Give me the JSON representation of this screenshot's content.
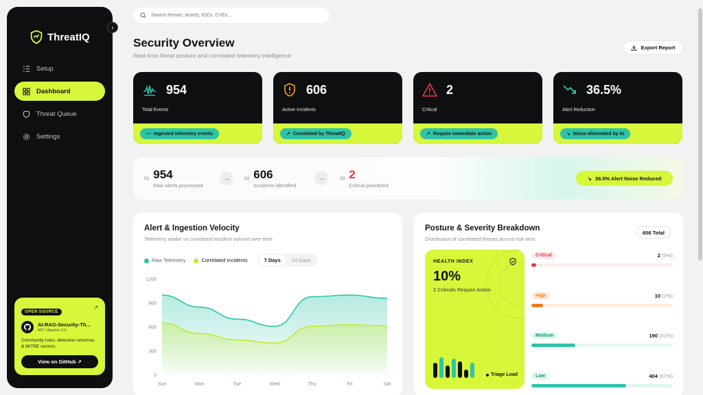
{
  "app": {
    "name": "ThreatIQ"
  },
  "search": {
    "placeholder": "Search threats, assets, IOCs, CVEs..."
  },
  "sidebar": {
    "items": [
      {
        "label": "Setup",
        "icon": "list-check-icon",
        "active": false
      },
      {
        "label": "Dashboard",
        "icon": "grid-icon",
        "active": true
      },
      {
        "label": "Threat Queue",
        "icon": "shield-icon",
        "active": false
      },
      {
        "label": "Settings",
        "icon": "gear-icon",
        "active": false
      }
    ],
    "open_source": {
      "badge": "OPEN SOURCE",
      "repo": "AI-RAG-Security-Th...",
      "license": "MIT / Apache 2.0",
      "description": "Community rules, detection schemas & MITRE vectors.",
      "button": "View on GitHub ↗"
    }
  },
  "header": {
    "title": "Security Overview",
    "subtitle": "Real-time threat posture and correlated telemetry intelligence",
    "export_label": "Export Report"
  },
  "stats": [
    {
      "value": "954",
      "label": "Total Events",
      "pill": "Ingested telemetry events",
      "icon": "pulse-bars-icon"
    },
    {
      "value": "606",
      "label": "Active Incidents",
      "pill": "Correlated by ThreatIQ",
      "icon": "shield-alert-icon"
    },
    {
      "value": "2",
      "label": "Critical",
      "pill": "Require immediate action",
      "icon": "warning-triangle-icon"
    },
    {
      "value": "36.5%",
      "label": "Alert Reduction",
      "pill": "Noise eliminated by AI",
      "icon": "trend-down-icon"
    }
  ],
  "pipeline": {
    "steps": [
      {
        "num": "01",
        "value": "954",
        "desc": "Raw alerts processed"
      },
      {
        "num": "02",
        "value": "606",
        "desc": "Incidents identified"
      },
      {
        "num": "03",
        "value": "2",
        "desc": "Critical prioritized"
      }
    ],
    "badge": "36.5% Alert Noise Reduced"
  },
  "velocity": {
    "title": "Alert & Ingestion Velocity",
    "subtitle": "Telemetry intake vs correlated incident volume over time",
    "legend": [
      "Raw Telemetry",
      "Correlated Incidents"
    ],
    "ranges": [
      "7 Days",
      "14 Days"
    ],
    "active_range": "7 Days"
  },
  "chart_data": {
    "type": "area",
    "x": [
      "Sun",
      "Mon",
      "Tue",
      "Wed",
      "Thu",
      "Fri",
      "Sat"
    ],
    "series": [
      {
        "name": "Raw Telemetry",
        "color": "#2ec4a9",
        "values": [
          1000,
          850,
          700,
          610,
          980,
          1000,
          960
        ]
      },
      {
        "name": "Correlated Incidents",
        "color": "#c5ea2a",
        "values": [
          650,
          520,
          440,
          400,
          610,
          630,
          615
        ]
      }
    ],
    "ylim": [
      0,
      1200
    ],
    "yticks": [
      0,
      300,
      600,
      900,
      1200
    ],
    "grid": false
  },
  "posture": {
    "title": "Posture & Severity Breakdown",
    "subtitle": "Distribution of correlated threats across risk tiers",
    "total": "606 Total",
    "health": {
      "label": "HEALTH INDEX",
      "value": "10%",
      "sub": "2 Criticals Require Action",
      "triage": "Triage Load"
    },
    "severities": [
      {
        "label": "Critical",
        "count": "2",
        "pct": "(0%)",
        "fraction": 0.0,
        "color": "#e53945",
        "bg": "#fdecec"
      },
      {
        "label": "High",
        "count": "10",
        "pct": "(2%)",
        "fraction": 0.02,
        "color": "#f07a1a",
        "bg": "#fdeee2"
      },
      {
        "label": "Medium",
        "count": "190",
        "pct": "(31%)",
        "fraction": 0.31,
        "color": "#2ec4a9",
        "bg": "#e3f7f2"
      },
      {
        "label": "Low",
        "count": "404",
        "pct": "(67%)",
        "fraction": 0.67,
        "color": "#2ec4a9",
        "bg": "#e3f7f2"
      }
    ]
  }
}
